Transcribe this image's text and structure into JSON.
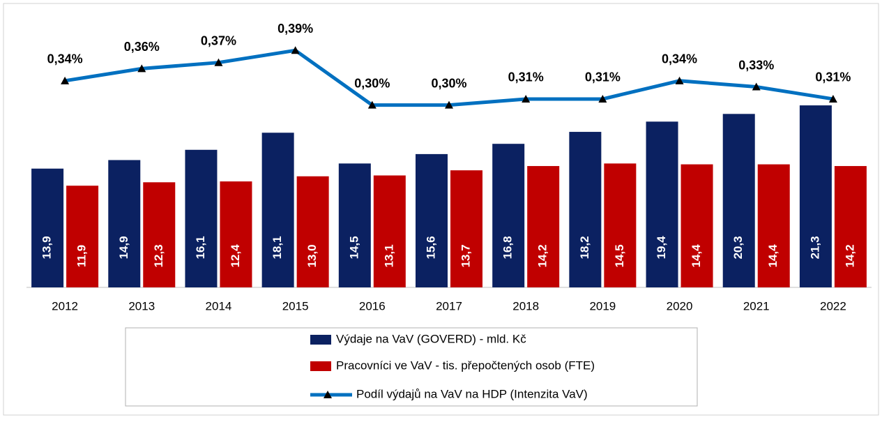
{
  "chart_data": {
    "type": "bar_line",
    "categories": [
      "2012",
      "2013",
      "2014",
      "2015",
      "2016",
      "2017",
      "2018",
      "2019",
      "2020",
      "2021",
      "2022"
    ],
    "series": [
      {
        "name": "Výdaje na VaV (GOVERD) - mld. Kč",
        "color": "#0b2161",
        "type": "bar",
        "values": [
          13.9,
          14.9,
          16.1,
          18.1,
          14.5,
          15.6,
          16.8,
          18.2,
          19.4,
          20.3,
          21.3
        ],
        "value_labels": [
          "13,9",
          "14,9",
          "16,1",
          "18,1",
          "14,5",
          "15,6",
          "16,8",
          "18,2",
          "19,4",
          "20,3",
          "21,3"
        ]
      },
      {
        "name": "Pracovníci ve VaV - tis. přepočtených osob (FTE)",
        "color": "#c00000",
        "type": "bar",
        "values": [
          11.9,
          12.3,
          12.4,
          13.0,
          13.1,
          13.7,
          14.2,
          14.5,
          14.4,
          14.4,
          14.2
        ],
        "value_labels": [
          "11,9",
          "12,3",
          "12,4",
          "13,0",
          "13,1",
          "13,7",
          "14,2",
          "14,5",
          "14,4",
          "14,4",
          "14,2"
        ]
      },
      {
        "name": "Podíl výdajů na VaV na HDP (Intenzita VaV)",
        "color": "#0070c0",
        "type": "line",
        "axis": "y2",
        "values": [
          0.34,
          0.36,
          0.37,
          0.39,
          0.3,
          0.3,
          0.31,
          0.31,
          0.34,
          0.33,
          0.31
        ],
        "value_labels": [
          "0,34%",
          "0,36%",
          "0,37%",
          "0,39%",
          "0,30%",
          "0,30%",
          "0,31%",
          "0,31%",
          "0,34%",
          "0,33%",
          "0,31%"
        ]
      }
    ],
    "ylim": [
      0,
      32
    ],
    "y2lim": [
      0,
      0.45
    ],
    "legend": "bottom"
  }
}
